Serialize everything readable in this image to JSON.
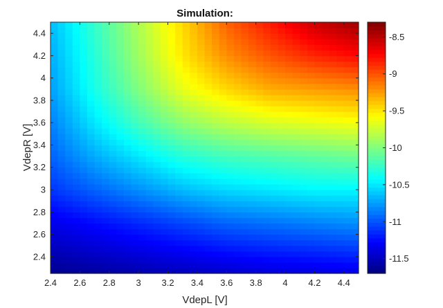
{
  "chart_data": {
    "type": "heatmap",
    "title": "Simulation:",
    "xlabel": "VdepL [V]",
    "ylabel": "VdepR [V]",
    "xlim": [
      2.4,
      4.5
    ],
    "ylim": [
      2.25,
      4.5
    ],
    "x_ticks": [
      "2.4",
      "2.6",
      "2.8",
      "3",
      "3.2",
      "3.4",
      "3.6",
      "3.8",
      "4",
      "4.2",
      "4.4"
    ],
    "y_ticks": [
      "2.4",
      "2.6",
      "2.8",
      "3",
      "3.2",
      "3.4",
      "3.6",
      "3.8",
      "4",
      "4.2",
      "4.4"
    ],
    "colorbar": {
      "range": [
        -11.7,
        -8.3
      ],
      "ticks": [
        "-8.5",
        "-9",
        "-9.5",
        "-10",
        "-10.5",
        "-11",
        "-11.5"
      ],
      "colormap": "jet"
    },
    "x_grid": [
      2.4,
      2.7,
      3.0,
      3.3,
      3.6,
      3.9,
      4.2,
      4.5
    ],
    "y_grid": [
      2.25,
      2.7,
      3.0,
      3.3,
      3.6,
      3.9,
      4.2,
      4.5
    ],
    "z_values": [
      [
        -11.65,
        -11.6,
        -11.55,
        -11.5,
        -11.45,
        -11.4,
        -11.38,
        -11.35
      ],
      [
        -11.35,
        -11.25,
        -11.15,
        -11.05,
        -10.95,
        -10.9,
        -10.85,
        -10.8
      ],
      [
        -11.1,
        -10.95,
        -10.8,
        -10.65,
        -10.55,
        -10.5,
        -10.45,
        -10.45
      ],
      [
        -10.95,
        -10.7,
        -10.5,
        -10.3,
        -10.2,
        -10.15,
        -10.1,
        -10.05
      ],
      [
        -10.85,
        -10.5,
        -10.2,
        -9.95,
        -9.8,
        -9.7,
        -9.65,
        -9.6
      ],
      [
        -10.75,
        -10.35,
        -10.0,
        -9.65,
        -9.45,
        -9.3,
        -9.25,
        -9.2
      ],
      [
        -10.7,
        -10.3,
        -9.9,
        -9.5,
        -9.2,
        -9.0,
        -8.85,
        -8.75
      ],
      [
        -10.65,
        -10.25,
        -9.85,
        -9.45,
        -9.05,
        -8.8,
        -8.55,
        -8.4
      ]
    ]
  }
}
